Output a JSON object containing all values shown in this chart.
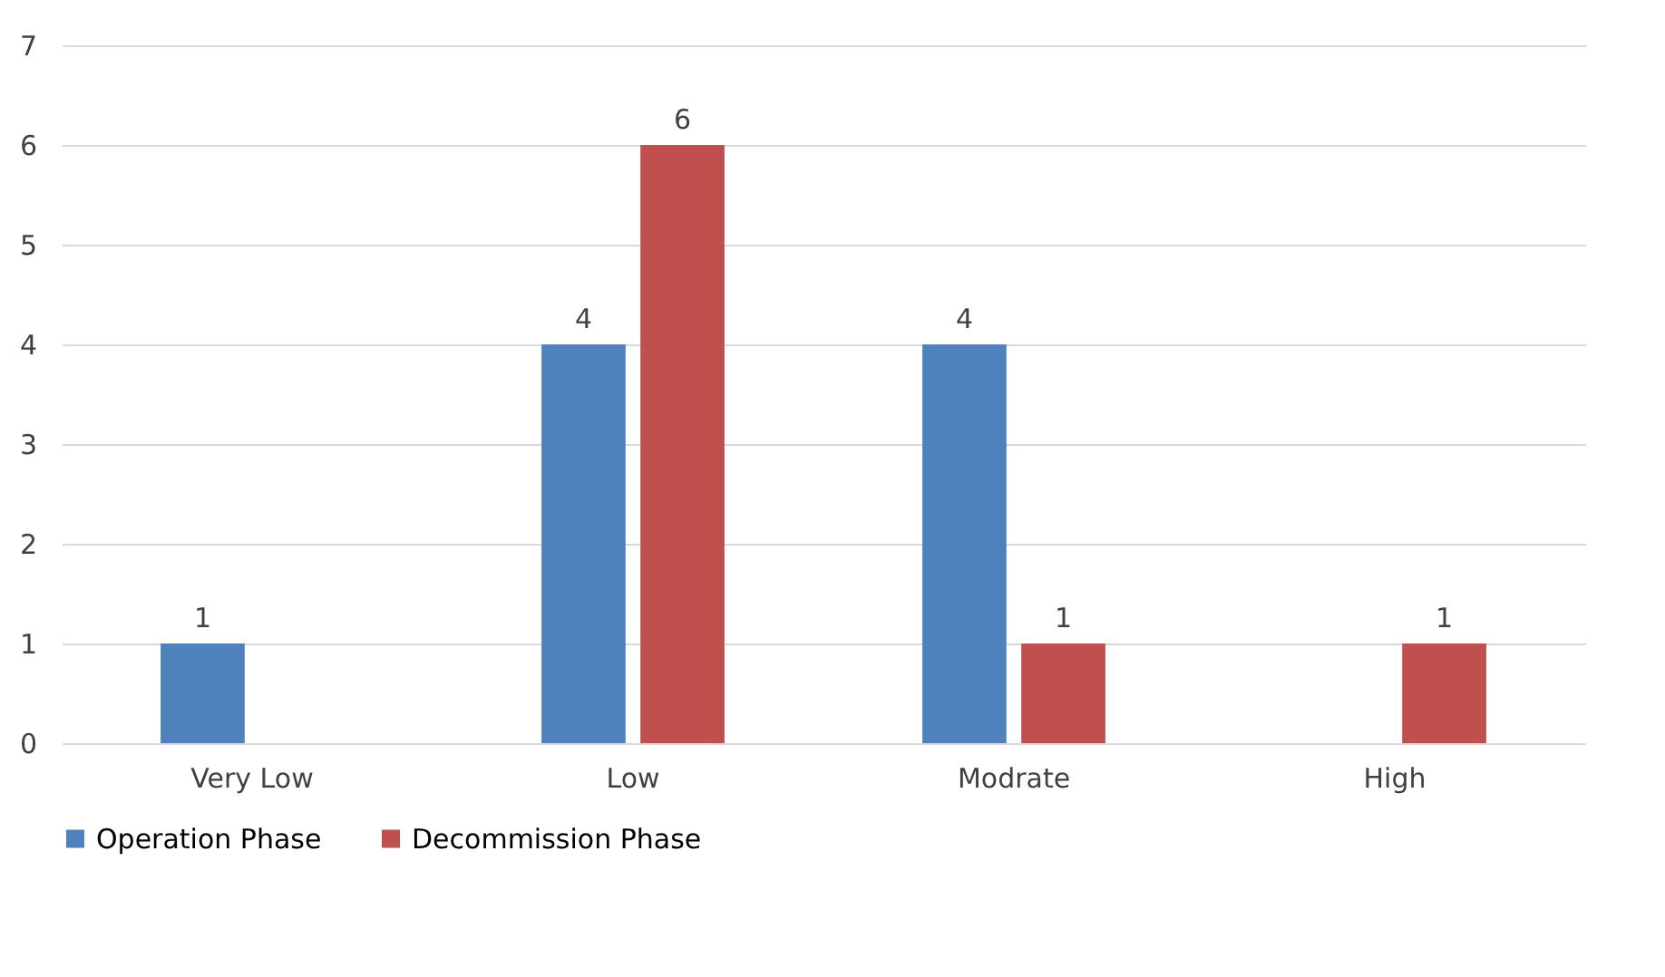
{
  "chart_data": {
    "type": "bar",
    "categories": [
      "Very Low",
      "Low",
      "Modrate",
      "High"
    ],
    "series": [
      {
        "name": "Operation Phase",
        "color": "#4f81bd",
        "values": [
          1,
          4,
          4,
          null
        ]
      },
      {
        "name": "Decommission Phase",
        "color": "#c0504d",
        "values": [
          null,
          6,
          1,
          1
        ]
      }
    ],
    "ylim": [
      0,
      7
    ],
    "yticks": [
      0,
      1,
      2,
      3,
      4,
      5,
      6,
      7
    ],
    "grid": "y",
    "legend": "bottom",
    "data_labels": true
  }
}
